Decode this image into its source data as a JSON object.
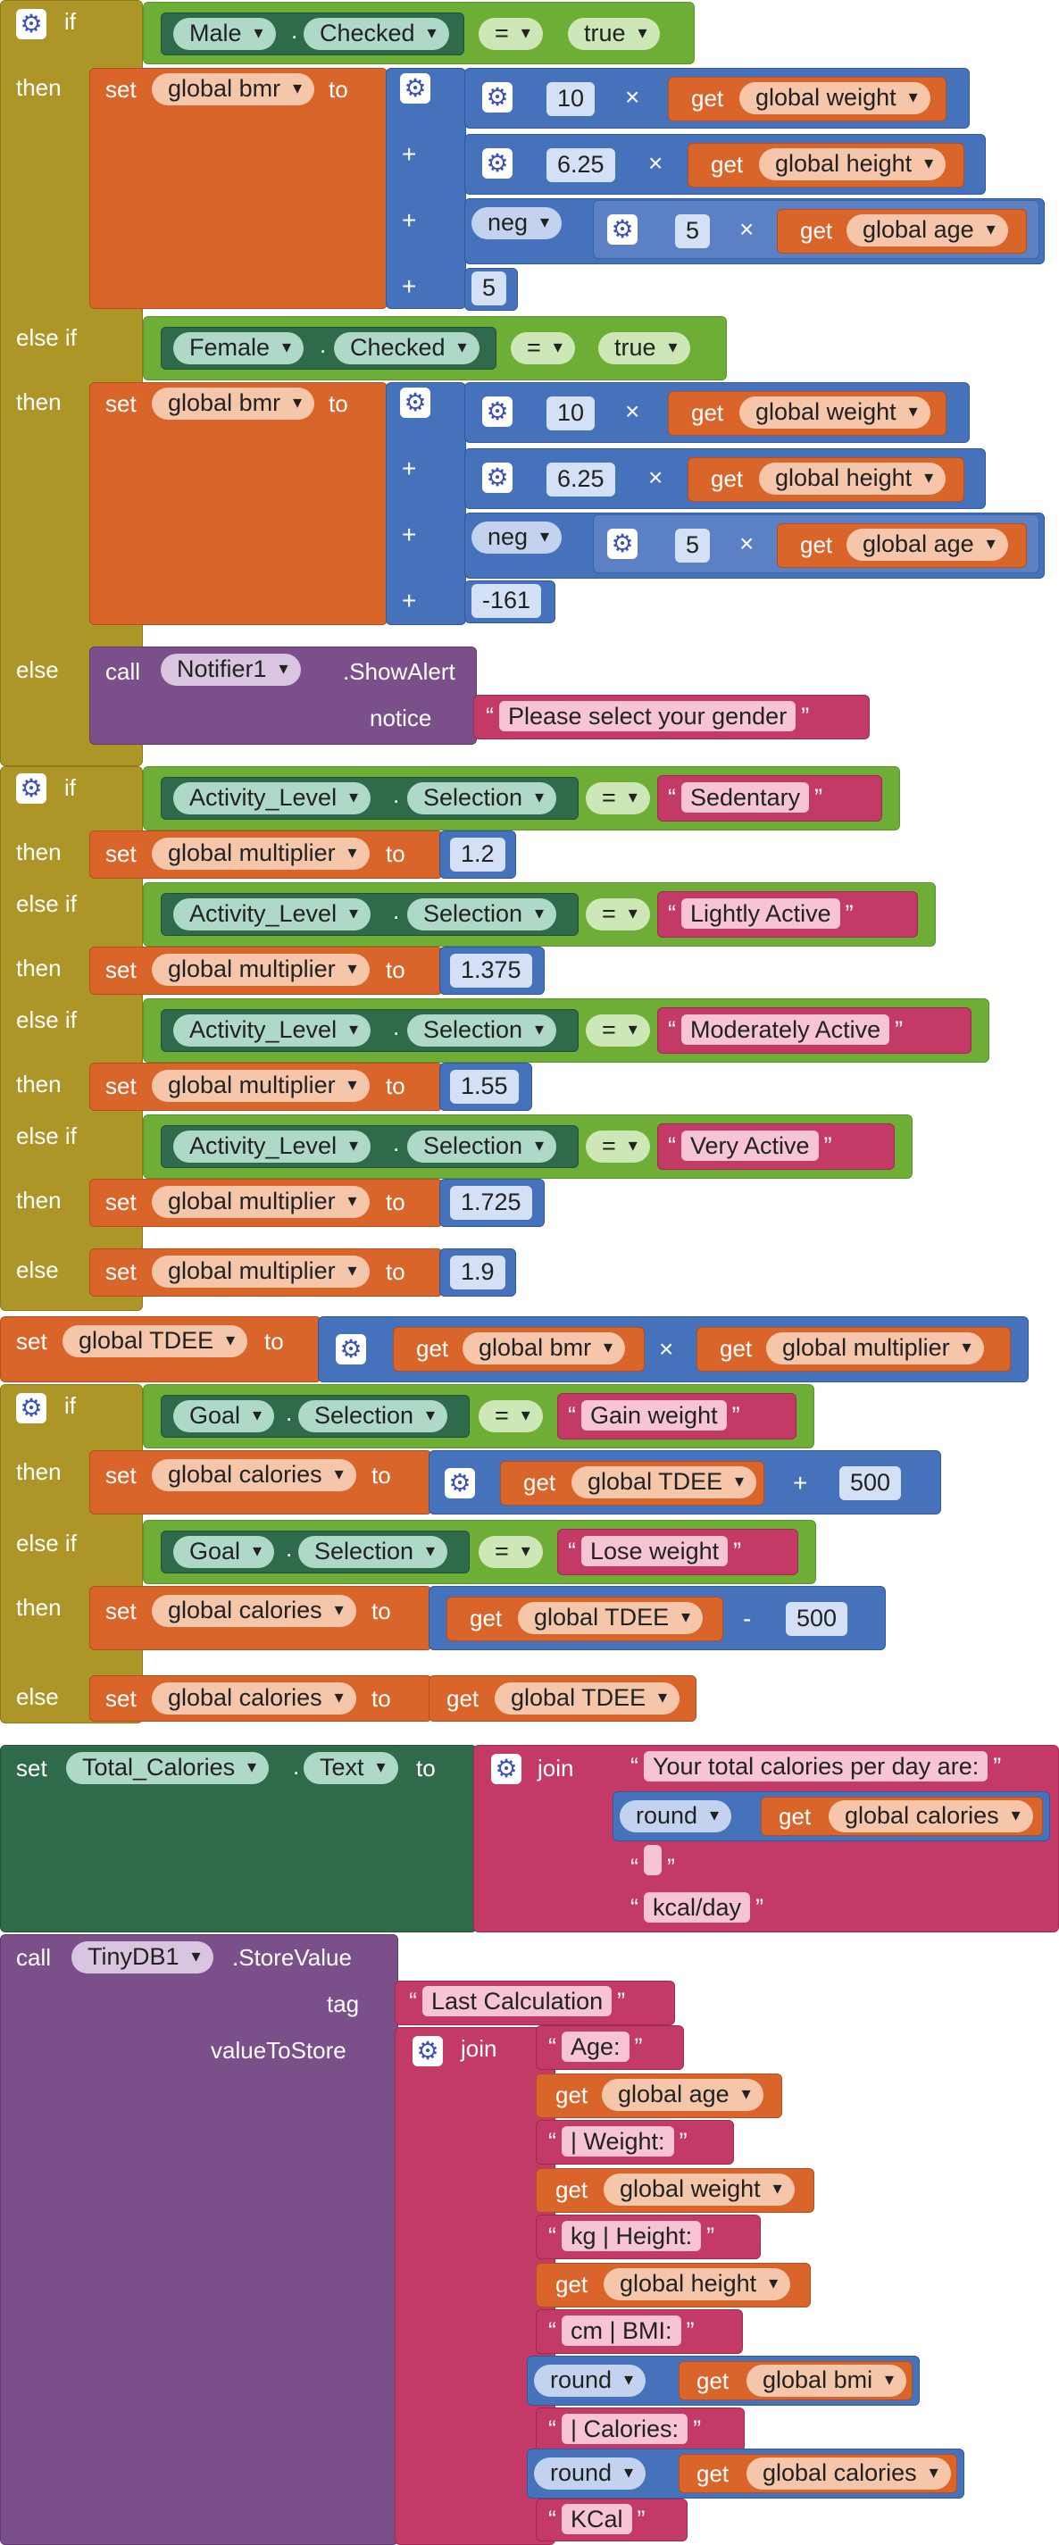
{
  "kw": {
    "if": "if",
    "then": "then",
    "else_if": "else if",
    "else": "else",
    "set": "set",
    "to": "to",
    "get": "get",
    "call": "call",
    "join": "join",
    "round": "round",
    "neg": "neg",
    "plus": "+",
    "times": "×",
    "minus": "-",
    "dot": ".",
    "eq": "=",
    "true": "true"
  },
  "vars": {
    "bmr": "global bmr",
    "weight": "global weight",
    "height": "global height",
    "age": "global age",
    "multiplier": "global multiplier",
    "tdee": "global TDEE",
    "calories": "global calories",
    "bmi": "global bmi"
  },
  "comp": {
    "male": "Male",
    "female": "Female",
    "checked": "Checked",
    "activity": "Activity_Level",
    "selection": "Selection",
    "goal": "Goal",
    "total": "Total_Calories",
    "text": "Text",
    "notifier": "Notifier1",
    "show_alert": ".ShowAlert",
    "notice": "notice",
    "tinydb": "TinyDB1",
    "store": ".StoreValue",
    "tag": "tag",
    "value": "valueToStore"
  },
  "nums": {
    "n10": "10",
    "n625": "6.25",
    "n5": "5",
    "n5b": "5",
    "n161": "-161",
    "m12": "1.2",
    "m1375": "1.375",
    "m155": "1.55",
    "m1725": "1.725",
    "m19": "1.9",
    "n500": "500"
  },
  "strings": {
    "gender_alert": "Please select your gender",
    "sedentary": "Sedentary",
    "lightly": "Lightly Active",
    "moderately": "Moderately Active",
    "very": "Very Active",
    "gain": "Gain weight",
    "lose": "Lose weight",
    "total_prefix": "Your total calories per day are:",
    "space": " ",
    "kcal_day": "kcal/day",
    "last_calc": "Last Calculation",
    "age_lbl": "Age:",
    "weight_lbl": "| Weight:",
    "height_lbl": "kg | Height:",
    "bmi_lbl": "cm | BMI:",
    "cal_lbl": "| Calories:",
    "kcal": "KCal"
  }
}
